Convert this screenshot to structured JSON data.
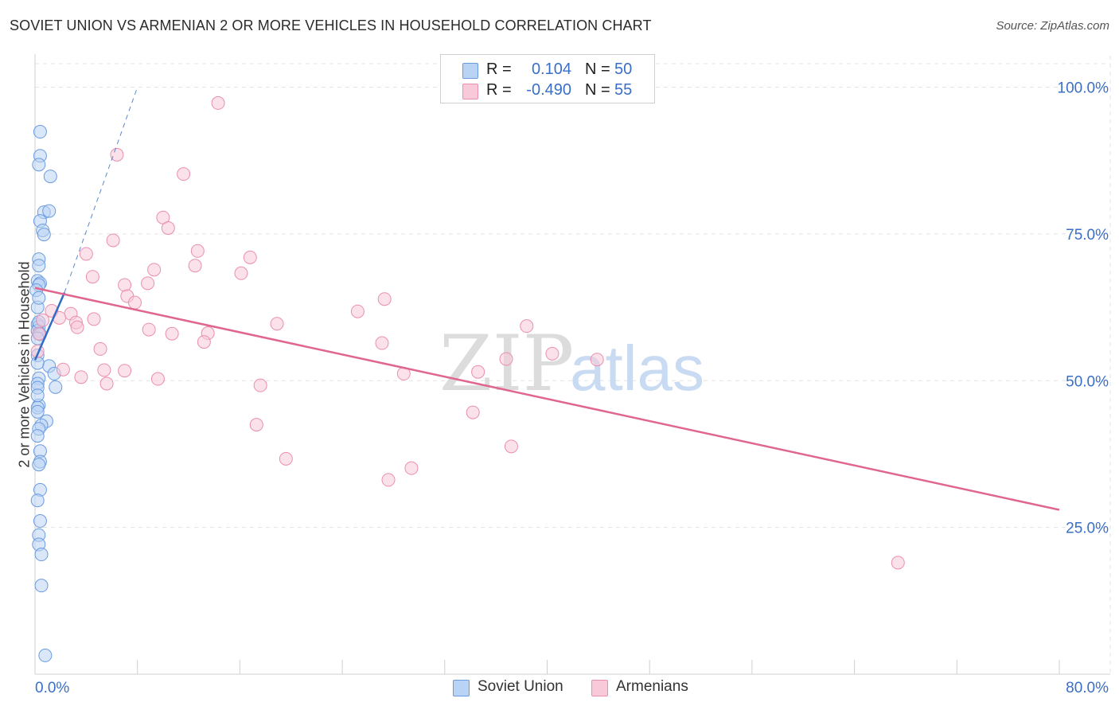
{
  "header": {
    "title": "SOVIET UNION VS ARMENIAN 2 OR MORE VEHICLES IN HOUSEHOLD CORRELATION CHART",
    "source": "Source: ZipAtlas.com"
  },
  "legend_top": {
    "rows": [
      {
        "r_label": "R =",
        "r_value": "0.104",
        "n_label": "N =",
        "n_value": "50"
      },
      {
        "r_label": "R =",
        "r_value": "-0.490",
        "n_label": "N =",
        "n_value": "55"
      }
    ]
  },
  "legend_bottom": {
    "items": [
      {
        "label": "Soviet Union"
      },
      {
        "label": "Armenians"
      }
    ]
  },
  "watermark": {
    "zip": "ZIP",
    "atlas": "atlas"
  },
  "colors": {
    "soviet_fill": "#b9d3f4",
    "soviet_stroke": "#6a9be0",
    "soviet_line": "#2f6cc4",
    "armenian_fill": "#f8c9d8",
    "armenian_stroke": "#ea8fae",
    "armenian_line": "#e0668f",
    "tick_label": "#3a6fc7",
    "grid": "#e3e3e3"
  },
  "chart_data": {
    "type": "scatter",
    "title": "SOVIET UNION VS ARMENIAN 2 OR MORE VEHICLES IN HOUSEHOLD CORRELATION CHART",
    "xlabel": "",
    "ylabel": "2 or more Vehicles in Household",
    "xlim": [
      0,
      80
    ],
    "ylim": [
      0,
      104
    ],
    "x_tick_labels": [
      "0.0%",
      "80.0%"
    ],
    "y_ticks": [
      25,
      50,
      75,
      100
    ],
    "y_tick_labels": [
      "25.0%",
      "50.0%",
      "75.0%",
      "100.0%"
    ],
    "grid": true,
    "legend_position": "top-center",
    "series": [
      {
        "name": "Soviet Union",
        "R": 0.104,
        "N": 50,
        "points": [
          [
            0.4,
            92.4
          ],
          [
            0.4,
            88.3
          ],
          [
            0.3,
            86.8
          ],
          [
            1.2,
            84.8
          ],
          [
            0.7,
            78.7
          ],
          [
            1.1,
            78.9
          ],
          [
            0.4,
            77.2
          ],
          [
            0.6,
            75.6
          ],
          [
            0.7,
            74.9
          ],
          [
            0.3,
            70.7
          ],
          [
            0.3,
            69.6
          ],
          [
            0.2,
            67.0
          ],
          [
            0.4,
            66.6
          ],
          [
            0.3,
            66.3
          ],
          [
            0.1,
            65.4
          ],
          [
            0.2,
            62.5
          ],
          [
            0.2,
            59.6
          ],
          [
            0.3,
            59.2
          ],
          [
            0.2,
            58.5
          ],
          [
            0.4,
            57.9
          ],
          [
            0.2,
            57.2
          ],
          [
            1.1,
            52.5
          ],
          [
            1.5,
            51.2
          ],
          [
            0.3,
            50.4
          ],
          [
            1.6,
            48.9
          ],
          [
            0.2,
            49.5
          ],
          [
            0.2,
            48.8
          ],
          [
            0.3,
            45.8
          ],
          [
            0.2,
            45.4
          ],
          [
            0.2,
            44.7
          ],
          [
            0.9,
            43.1
          ],
          [
            0.5,
            42.4
          ],
          [
            0.3,
            41.8
          ],
          [
            0.4,
            38.0
          ],
          [
            0.4,
            36.2
          ],
          [
            0.3,
            35.7
          ],
          [
            0.4,
            31.4
          ],
          [
            0.4,
            26.1
          ],
          [
            0.3,
            23.7
          ],
          [
            0.3,
            22.1
          ],
          [
            0.5,
            20.4
          ],
          [
            0.5,
            15.1
          ],
          [
            0.8,
            3.2
          ],
          [
            0.3,
            64.1
          ],
          [
            0.3,
            60.0
          ],
          [
            0.2,
            54.3
          ],
          [
            0.2,
            53.0
          ],
          [
            0.2,
            47.5
          ],
          [
            0.2,
            40.6
          ],
          [
            0.2,
            29.6
          ]
        ],
        "trend": {
          "x0": 0.0,
          "y0": 53.5,
          "x1": 2.3,
          "y1": 65.0,
          "style": "solid"
        },
        "trend_extension": {
          "x0": 2.3,
          "y0": 65.0,
          "x1": 8.0,
          "y1": 100.0,
          "style": "dashed"
        }
      },
      {
        "name": "Armenians",
        "R": -0.49,
        "N": 55,
        "points": [
          [
            14.3,
            97.3
          ],
          [
            6.4,
            88.5
          ],
          [
            11.6,
            85.2
          ],
          [
            10.0,
            77.8
          ],
          [
            10.4,
            76.0
          ],
          [
            6.1,
            73.9
          ],
          [
            12.7,
            72.1
          ],
          [
            4.0,
            71.6
          ],
          [
            16.8,
            71.0
          ],
          [
            12.5,
            69.6
          ],
          [
            9.3,
            68.9
          ],
          [
            16.1,
            68.3
          ],
          [
            4.5,
            67.7
          ],
          [
            7.0,
            66.3
          ],
          [
            8.8,
            66.6
          ],
          [
            7.2,
            64.4
          ],
          [
            27.3,
            63.9
          ],
          [
            7.8,
            63.3
          ],
          [
            25.2,
            61.8
          ],
          [
            2.8,
            61.4
          ],
          [
            1.3,
            61.9
          ],
          [
            1.9,
            60.7
          ],
          [
            0.6,
            60.3
          ],
          [
            4.6,
            60.5
          ],
          [
            3.2,
            59.9
          ],
          [
            18.9,
            59.7
          ],
          [
            3.3,
            59.1
          ],
          [
            38.4,
            59.3
          ],
          [
            8.9,
            58.7
          ],
          [
            10.7,
            58.0
          ],
          [
            13.5,
            58.1
          ],
          [
            13.2,
            56.6
          ],
          [
            27.1,
            56.4
          ],
          [
            5.1,
            55.4
          ],
          [
            40.4,
            54.6
          ],
          [
            36.8,
            53.7
          ],
          [
            43.9,
            53.6
          ],
          [
            2.2,
            51.9
          ],
          [
            5.4,
            51.8
          ],
          [
            7.0,
            51.7
          ],
          [
            28.8,
            51.2
          ],
          [
            34.6,
            51.5
          ],
          [
            3.6,
            50.6
          ],
          [
            9.6,
            50.3
          ],
          [
            5.6,
            49.5
          ],
          [
            17.6,
            49.2
          ],
          [
            34.2,
            44.6
          ],
          [
            17.3,
            42.5
          ],
          [
            37.2,
            38.8
          ],
          [
            19.6,
            36.7
          ],
          [
            29.4,
            35.1
          ],
          [
            27.6,
            33.1
          ],
          [
            67.4,
            19.0
          ],
          [
            0.2,
            55.0
          ],
          [
            0.3,
            58.0
          ]
        ],
        "trend": {
          "x0": 0.0,
          "y0": 65.8,
          "x1": 80.0,
          "y1": 28.0,
          "style": "solid"
        }
      }
    ]
  }
}
